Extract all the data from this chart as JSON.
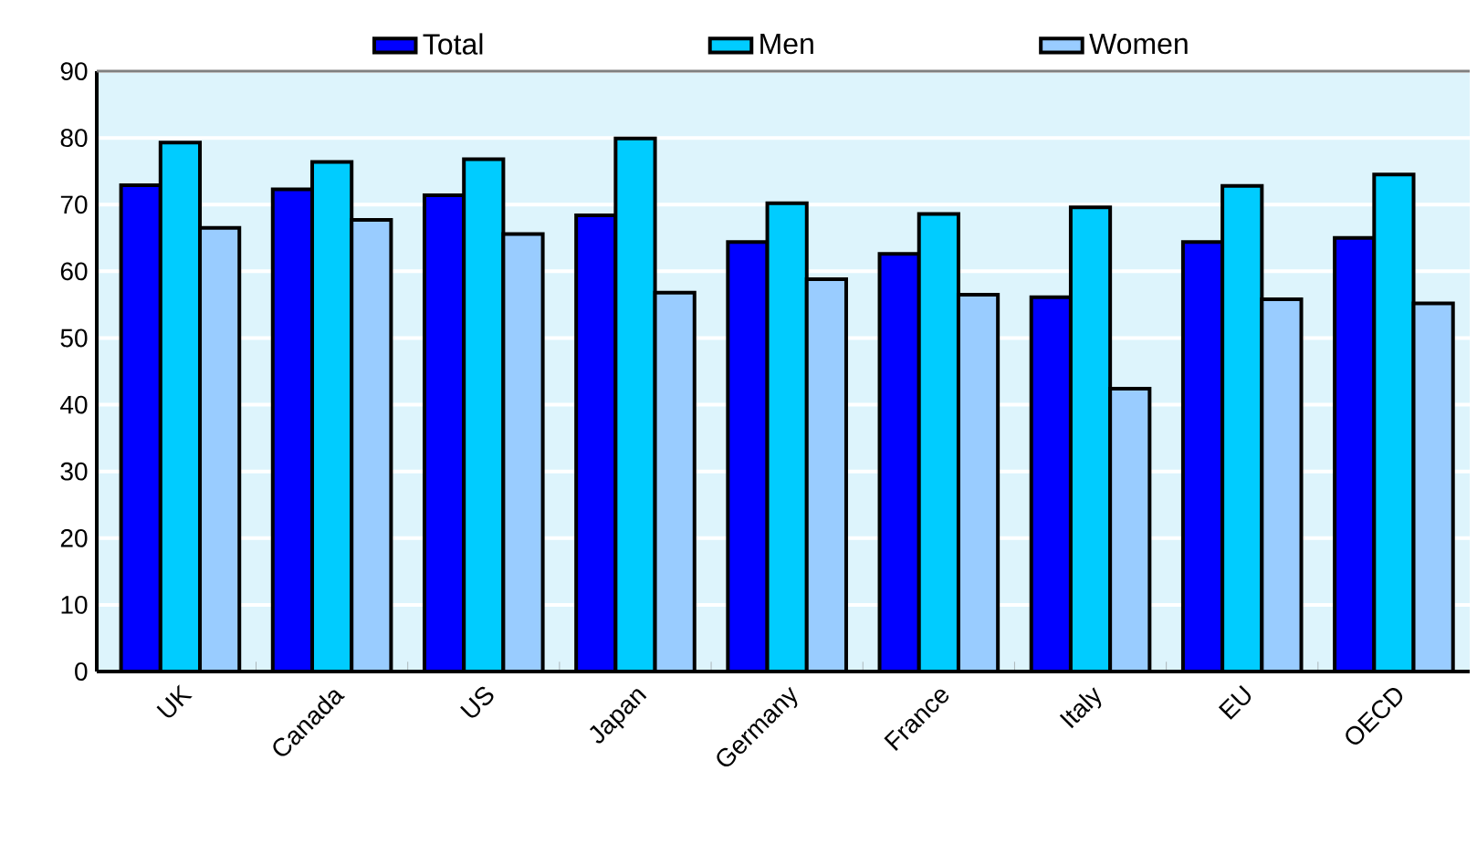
{
  "chart_data": {
    "type": "bar",
    "categories": [
      "UK",
      "Canada",
      "US",
      "Japan",
      "Germany",
      "France",
      "Italy",
      "EU",
      "OECD"
    ],
    "series": [
      {
        "name": "Total",
        "color": "#0000ff",
        "values": [
          72.9,
          72.3,
          71.4,
          68.4,
          64.4,
          62.6,
          56.1,
          64.4,
          65.0
        ]
      },
      {
        "name": "Men",
        "color": "#00ccff",
        "values": [
          79.3,
          76.4,
          76.8,
          79.9,
          70.2,
          68.6,
          69.6,
          72.8,
          74.5
        ]
      },
      {
        "name": "Women",
        "color": "#99ccff",
        "values": [
          66.5,
          67.7,
          65.6,
          56.8,
          58.8,
          56.5,
          42.4,
          55.8,
          55.2
        ]
      }
    ],
    "ylim": [
      0,
      90
    ],
    "yticks": [
      0,
      10,
      20,
      30,
      40,
      50,
      60,
      70,
      80,
      90
    ],
    "grid": "y",
    "legend": "top"
  }
}
